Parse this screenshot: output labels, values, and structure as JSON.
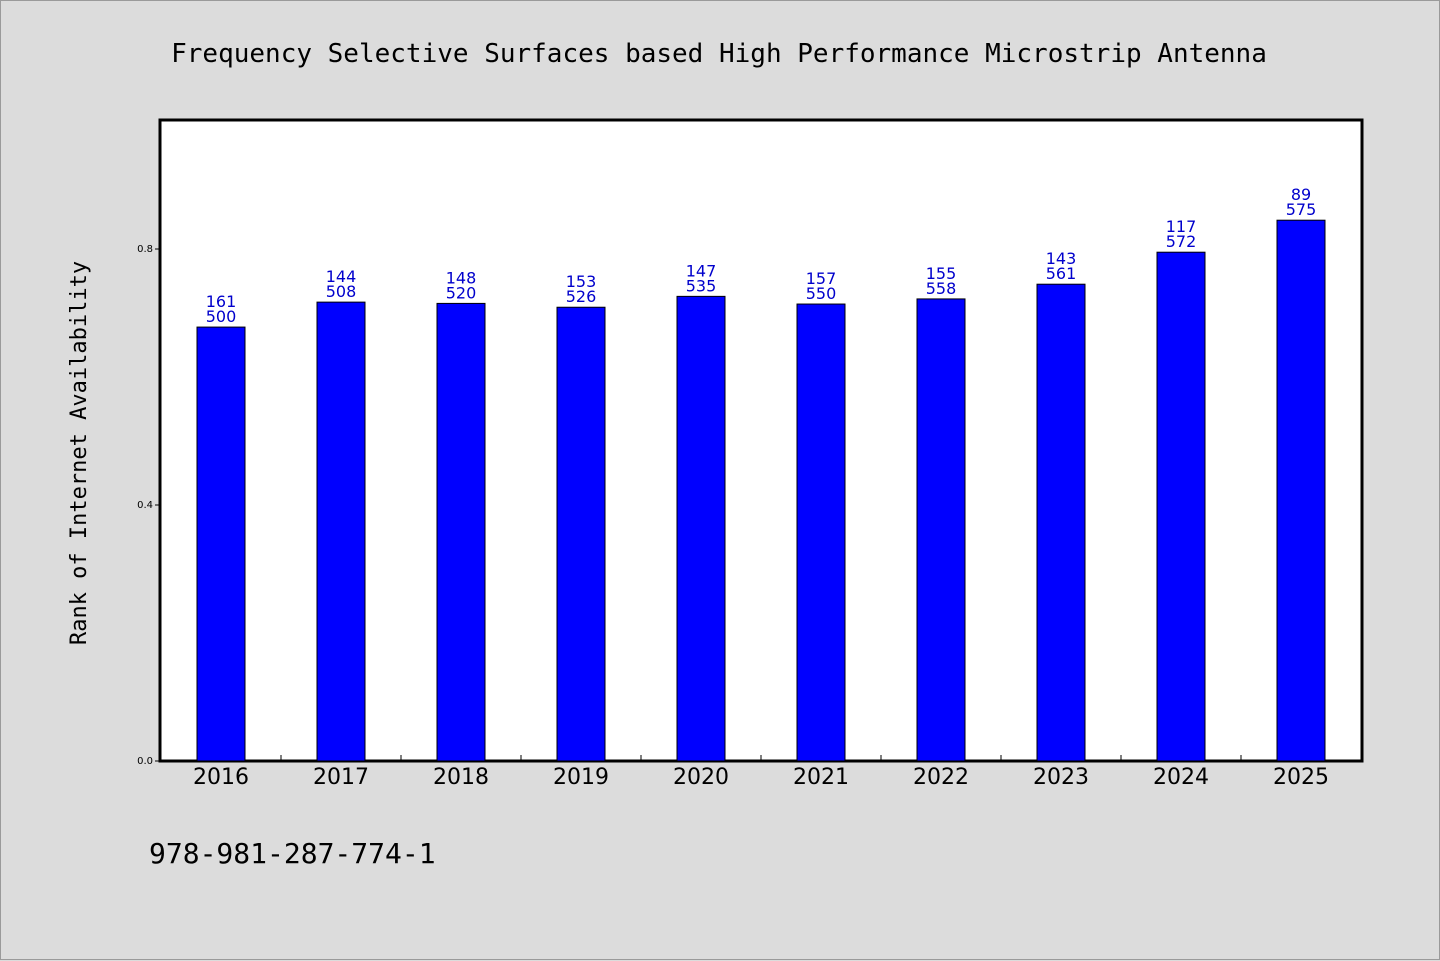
{
  "chart_data": {
    "type": "bar",
    "title": "Frequency Selective Surfaces based High Performance Microstrip Antenna",
    "xlabel": "",
    "ylabel": "Rank of Internet Availability",
    "ylim": [
      0.0,
      1.0
    ],
    "yticks": [
      0.0,
      0.4,
      0.8
    ],
    "ytick_labels": [
      "0.0",
      "0.4",
      "0.8"
    ],
    "grid": false,
    "bar_color": "#0000ff",
    "label_color": "#0000cc",
    "categories": [
      "2016",
      "2017",
      "2018",
      "2019",
      "2020",
      "2021",
      "2022",
      "2023",
      "2024",
      "2025"
    ],
    "values": [
      0.678,
      0.717,
      0.715,
      0.709,
      0.726,
      0.714,
      0.722,
      0.745,
      0.795,
      0.845
    ],
    "labels_top": [
      "161",
      "144",
      "148",
      "153",
      "147",
      "157",
      "155",
      "143",
      "117",
      "89"
    ],
    "labels_bottom": [
      "500",
      "508",
      "520",
      "526",
      "535",
      "550",
      "558",
      "561",
      "572",
      "575"
    ]
  },
  "footer": {
    "isbn": "978-981-287-774-1"
  }
}
